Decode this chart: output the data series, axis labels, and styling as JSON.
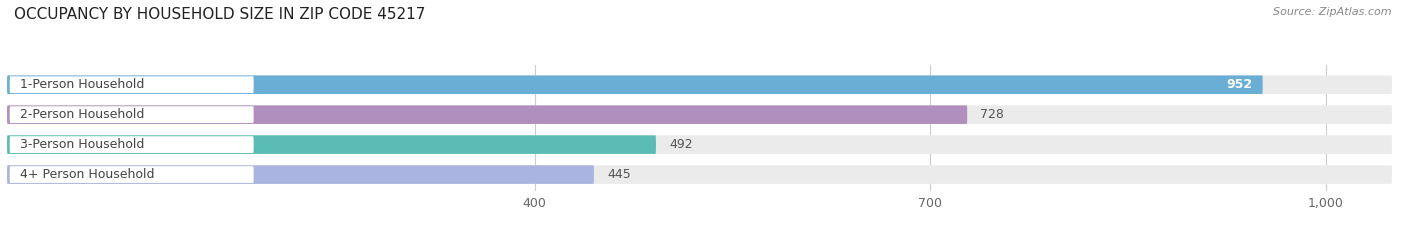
{
  "title": "OCCUPANCY BY HOUSEHOLD SIZE IN ZIP CODE 45217",
  "source": "Source: ZipAtlas.com",
  "categories": [
    "1-Person Household",
    "2-Person Household",
    "3-Person Household",
    "4+ Person Household"
  ],
  "values": [
    952,
    728,
    492,
    445
  ],
  "bar_colors": [
    "#6aaed6",
    "#b08fbe",
    "#5bbcb4",
    "#aab4e0"
  ],
  "xlim_min": 0,
  "xlim_max": 1050,
  "xticks": [
    400,
    700,
    1000
  ],
  "xticklabels": [
    "400",
    "700",
    "1,000"
  ],
  "bg_color": "#ffffff",
  "bar_bg_color": "#ebebeb",
  "title_fontsize": 11,
  "source_fontsize": 8,
  "label_fontsize": 9,
  "value_fontsize": 9
}
